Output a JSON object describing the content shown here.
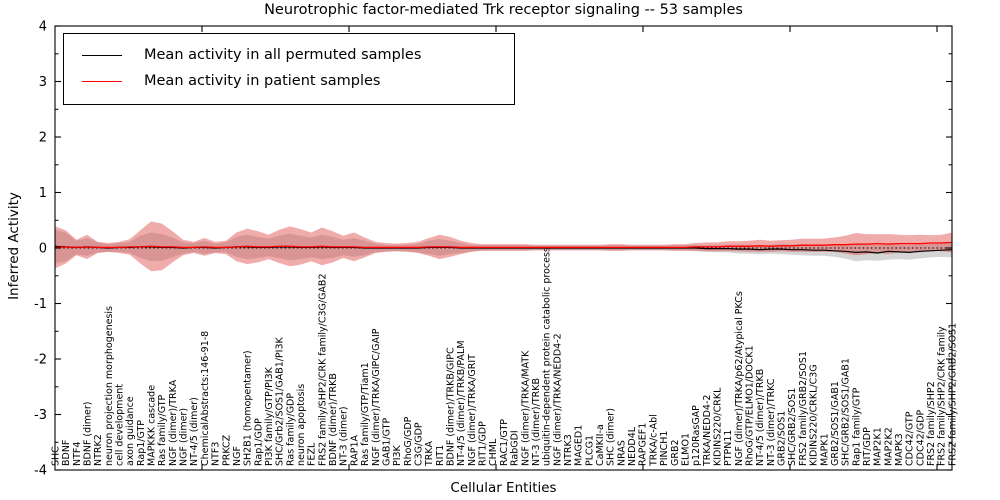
{
  "title": "Neurotrophic factor-mediated Trk receptor signaling -- 53 samples",
  "xlabel": "Cellular Entities",
  "ylabel": "Inferred Activity",
  "sample_count": "53",
  "legend": [
    {
      "label": "Mean activity in all permuted samples",
      "color": "#000000"
    },
    {
      "label": "Mean activity in patient samples",
      "color": "#ff0000"
    }
  ],
  "colors": {
    "permuted_line": "#000000",
    "patient_line": "#ff0000",
    "patient_band_fill": "#dd4444",
    "permuted_band_fill": "#888888",
    "axis": "#000000",
    "background": "#ffffff"
  },
  "chart_data": {
    "type": "line",
    "title": "Neurotrophic factor-mediated Trk receptor signaling -- 53 samples",
    "xlabel": "Cellular Entities",
    "ylabel": "Inferred Activity",
    "ylim": [
      -4,
      4
    ],
    "yticks_major": [
      4,
      3,
      2,
      1,
      0,
      -1,
      -2,
      -3,
      -4
    ],
    "ytick_minor_step": 0.5,
    "grid": "off",
    "legend_position": "upper left",
    "zero_reference_line": "dotted",
    "categories": [
      "SHC",
      "BDNF",
      "NTF4",
      "BDNF (dimer)",
      "NTRK2",
      "neuron projection morphogenesis",
      "cell development",
      "axon guidance",
      "Rap1/GTP",
      "MAPKKK cascade",
      "Ras family/GTP",
      "NGF (dimer)/TRKA",
      "NGF (dimer)",
      "NT-4/5 (dimer)",
      "ChemicalAbstracts:146-91-8",
      "NTF3",
      "PRKCZ",
      "NGF",
      "SH2B1 (homopentamer)",
      "Rap1/GDP",
      "PI3K family/GTP/PI3K",
      "SHC/Grb2/SOS1/GAB1/PI3K",
      "Ras family/GDP",
      "neuron apoptosis",
      "FEZL",
      "FRS2 family/SHP2/CRK family/C3G/GAB2",
      "BDNF (dimer)/TRKB",
      "NT-3 (dimer)",
      "RAP1A",
      "Ras family/GTP/Tiam1",
      "NGF (dimer)/TRKA/GIPC/GAIP",
      "GAB1/GTP",
      "PI3K",
      "RhoG/GDP",
      "C3G/GDP",
      "TRKA",
      "RIT1",
      "BDNF (dimer)/TRKB/GIPC",
      "NT-4/5 (dimer)/TRKB/PALM",
      "NGF (dimer)/TRKA/GRIT",
      "RIT1/GDP",
      "CHML",
      "RAC1/GTP",
      "RabGDI",
      "NGF (dimer)/TRKA/MATK",
      "NT-3 (dimer)/TRKB",
      "ubiquitin-dependent protein catabolic process",
      "NGF (dimer)/TRKA/NEDD4-2",
      "NTRK3",
      "MAGED1",
      "PLCG1",
      "CaMKII-a",
      "SHC (dimer)",
      "NRAS",
      "NEDD4L",
      "RAPGEF1",
      "TRKA/c-Abl",
      "PINCH1",
      "GRB2",
      "ELMO1",
      "p120RasGAP",
      "TRKA/NEDD4-2",
      "KIDINS220/CRKL",
      "PTPN11",
      "NGF (dimer)/TRKA/p62/Atypical PKCs",
      "RhoG/GTP/ELMO1/DOCK1",
      "NT-4/5 (dimer)/TRKB",
      "NT-3 (dimer)/TRKC",
      "GRB2/SOS1",
      "SHC/GRB2/SOS1",
      "FRS2 family/GRB2/SOS1",
      "KIDINS220/CRKL/C3G",
      "MAPK1",
      "GRB2/SOS1/GAB1",
      "SHC/GRB2/SOS1/GAB1",
      "Rap1 family/GTP",
      "RIT/GDP",
      "MAP2K1",
      "MAP2K2",
      "MAPK3",
      "CDC42/GTP",
      "CDC42/GDP",
      "FRS2 family/SHP2",
      "FRS2 family/SHP2/CRK family",
      "FRS2 family/SHP2/GRB2/SOS1"
    ],
    "series": [
      {
        "name": "Mean activity in all permuted samples",
        "color": "#000000",
        "values": [
          0.03,
          0.02,
          0.01,
          0.02,
          0.01,
          0.0,
          0.01,
          0.01,
          0.02,
          0.02,
          0.01,
          0.01,
          0.0,
          0.01,
          0.01,
          0.0,
          0.01,
          0.02,
          0.02,
          0.01,
          0.01,
          0.02,
          0.02,
          0.01,
          0.01,
          0.02,
          0.01,
          0.01,
          0.01,
          0.0,
          0.0,
          0.0,
          0.0,
          0.0,
          0.0,
          0.01,
          0.01,
          0.01,
          0.0,
          0.0,
          0.0,
          0.0,
          0.0,
          0.0,
          0.0,
          0.0,
          0.0,
          0.0,
          0.0,
          0.0,
          0.0,
          0.0,
          0.0,
          0.0,
          0.0,
          0.0,
          0.0,
          0.0,
          0.0,
          0.0,
          0.0,
          -0.01,
          -0.01,
          -0.01,
          -0.02,
          -0.02,
          -0.03,
          -0.02,
          -0.02,
          -0.03,
          -0.03,
          -0.04,
          -0.04,
          -0.05,
          -0.06,
          -0.08,
          -0.07,
          -0.09,
          -0.06,
          -0.07,
          -0.08,
          -0.06,
          -0.05,
          -0.04,
          -0.03
        ]
      },
      {
        "name": "Mean activity in patient samples",
        "color": "#ff0000",
        "values": [
          0.01,
          0.02,
          0.01,
          0.02,
          0.01,
          0.01,
          0.01,
          0.02,
          0.02,
          0.03,
          0.02,
          0.02,
          0.01,
          0.01,
          0.02,
          0.01,
          0.01,
          0.02,
          0.03,
          0.02,
          0.02,
          0.03,
          0.03,
          0.02,
          0.02,
          0.03,
          0.02,
          0.02,
          0.02,
          0.01,
          0.01,
          0.01,
          0.01,
          0.01,
          0.01,
          0.02,
          0.02,
          0.02,
          0.01,
          0.01,
          0.01,
          0.01,
          0.01,
          0.01,
          0.01,
          0.01,
          0.01,
          0.01,
          0.01,
          0.01,
          0.01,
          0.01,
          0.01,
          0.01,
          0.01,
          0.01,
          0.01,
          0.01,
          0.01,
          0.01,
          0.02,
          0.02,
          0.02,
          0.03,
          0.03,
          0.03,
          0.04,
          0.03,
          0.04,
          0.04,
          0.05,
          0.05,
          0.05,
          0.06,
          0.06,
          0.07,
          0.07,
          0.08,
          0.07,
          0.08,
          0.08,
          0.08,
          0.09,
          0.09,
          0.1
        ]
      },
      {
        "name": "patient band half-width",
        "color": "#dd4444",
        "values": [
          0.38,
          0.3,
          0.14,
          0.22,
          0.1,
          0.08,
          0.1,
          0.14,
          0.3,
          0.45,
          0.42,
          0.28,
          0.14,
          0.1,
          0.16,
          0.1,
          0.12,
          0.26,
          0.32,
          0.28,
          0.22,
          0.3,
          0.36,
          0.32,
          0.26,
          0.34,
          0.28,
          0.2,
          0.26,
          0.18,
          0.1,
          0.08,
          0.07,
          0.08,
          0.1,
          0.16,
          0.22,
          0.18,
          0.12,
          0.08,
          0.06,
          0.06,
          0.06,
          0.06,
          0.06,
          0.05,
          0.05,
          0.05,
          0.05,
          0.05,
          0.05,
          0.05,
          0.06,
          0.06,
          0.05,
          0.05,
          0.05,
          0.05,
          0.06,
          0.06,
          0.07,
          0.08,
          0.08,
          0.09,
          0.09,
          0.1,
          0.11,
          0.1,
          0.1,
          0.11,
          0.12,
          0.12,
          0.12,
          0.13,
          0.16,
          0.2,
          0.18,
          0.17,
          0.18,
          0.16,
          0.15,
          0.16,
          0.14,
          0.15,
          0.18
        ]
      },
      {
        "name": "permuted band half-width",
        "color": "#888888",
        "values": [
          0.3,
          0.26,
          0.12,
          0.16,
          0.09,
          0.07,
          0.08,
          0.1,
          0.2,
          0.26,
          0.24,
          0.18,
          0.1,
          0.08,
          0.12,
          0.08,
          0.09,
          0.18,
          0.22,
          0.19,
          0.16,
          0.2,
          0.24,
          0.21,
          0.18,
          0.22,
          0.19,
          0.14,
          0.17,
          0.13,
          0.08,
          0.06,
          0.06,
          0.06,
          0.08,
          0.12,
          0.15,
          0.12,
          0.09,
          0.06,
          0.05,
          0.05,
          0.05,
          0.05,
          0.05,
          0.04,
          0.04,
          0.04,
          0.04,
          0.04,
          0.04,
          0.04,
          0.05,
          0.05,
          0.04,
          0.04,
          0.04,
          0.04,
          0.05,
          0.05,
          0.06,
          0.06,
          0.07,
          0.07,
          0.08,
          0.08,
          0.08,
          0.08,
          0.09,
          0.09,
          0.1,
          0.1,
          0.1,
          0.11,
          0.13,
          0.16,
          0.15,
          0.14,
          0.15,
          0.13,
          0.13,
          0.13,
          0.12,
          0.12,
          0.14
        ]
      }
    ]
  }
}
